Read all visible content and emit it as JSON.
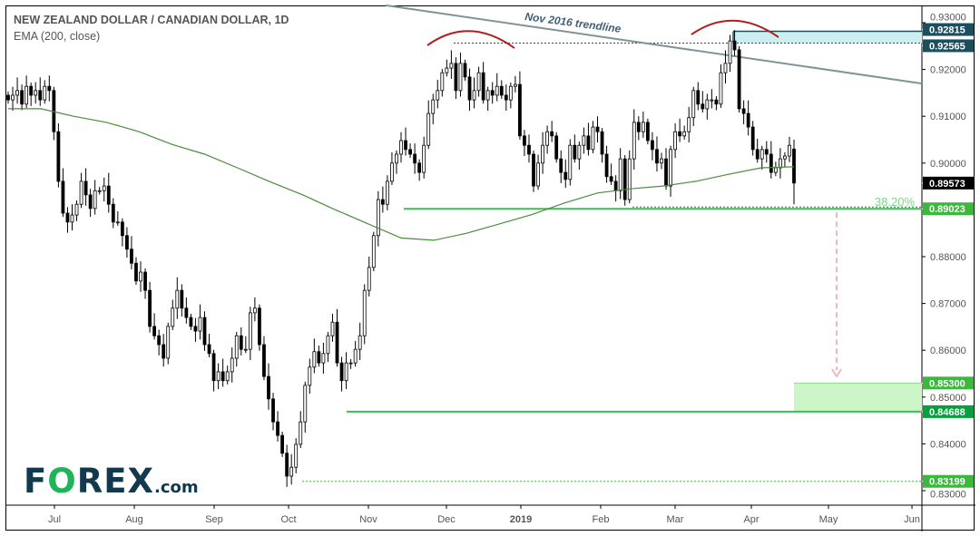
{
  "header": {
    "title": "NEW ZEALAND DOLLAR / CANADIAN DOLLAR, 1D",
    "indicator": "EMA (200, close)"
  },
  "logo": {
    "text": "FOREX.com",
    "brand_colors": {
      "dark": "#12394d",
      "green": "#1fb35a"
    }
  },
  "chart_data": {
    "type": "candlestick",
    "title": "NEW ZEALAND DOLLAR / CANADIAN DOLLAR, 1D",
    "ylim": [
      0.826,
      0.9335
    ],
    "y_ticks": [
      "0.93000",
      "0.92000",
      "0.91000",
      "0.90000",
      "0.88000",
      "0.87000",
      "0.86000",
      "0.85000",
      "0.84000",
      "0.83000"
    ],
    "y_tick_values": [
      0.93,
      0.92,
      0.91,
      0.9,
      0.88,
      0.87,
      0.86,
      0.85,
      0.84,
      0.83
    ],
    "x_ticks": [
      "Jul",
      "Aug",
      "Sep",
      "Oct",
      "Nov",
      "Dec",
      "2019",
      "Feb",
      "Mar",
      "Apr",
      "May",
      "Jun"
    ],
    "grid": false,
    "closes": [
      0.9135,
      0.9145,
      0.9155,
      0.9126,
      0.9164,
      0.9145,
      0.9155,
      0.9135,
      0.9164,
      0.9155,
      0.9067,
      0.8961,
      0.8893,
      0.8874,
      0.8889,
      0.8912,
      0.8961,
      0.8932,
      0.8903,
      0.8941,
      0.8941,
      0.8951,
      0.8912,
      0.8874,
      0.8874,
      0.8845,
      0.8816,
      0.8786,
      0.8748,
      0.8767,
      0.8728,
      0.8651,
      0.8631,
      0.8612,
      0.8583,
      0.8651,
      0.869,
      0.8728,
      0.869,
      0.867,
      0.8651,
      0.8641,
      0.867,
      0.8612,
      0.8593,
      0.8535,
      0.8554,
      0.8535,
      0.8554,
      0.8583,
      0.8631,
      0.8602,
      0.8602,
      0.868,
      0.869,
      0.8612,
      0.8544,
      0.8496,
      0.8447,
      0.8418,
      0.838,
      0.8331,
      0.835,
      0.8399,
      0.8447,
      0.8525,
      0.8564,
      0.8597,
      0.8573,
      0.8593,
      0.8631,
      0.866,
      0.8573,
      0.8535,
      0.8573,
      0.8573,
      0.8602,
      0.8631,
      0.8728,
      0.8777,
      0.8845,
      0.8922,
      0.8912,
      0.8961,
      0.9,
      0.9019,
      0.9048,
      0.9029,
      0.9019,
      0.9,
      0.898,
      0.9038,
      0.9106,
      0.9135,
      0.9155,
      0.9193,
      0.9203,
      0.9213,
      0.9155,
      0.9213,
      0.9184,
      0.9135,
      0.9155,
      0.9193,
      0.9135,
      0.9155,
      0.9145,
      0.9164,
      0.9145,
      0.9135,
      0.9164,
      0.9168,
      0.9058,
      0.9038,
      0.9019,
      0.8951,
      0.9,
      0.9038,
      0.9067,
      0.9058,
      0.9009,
      0.898,
      0.8965,
      0.9038,
      0.9009,
      0.9038,
      0.9058,
      0.9029,
      0.9077,
      0.9067,
      0.9019,
      0.8971,
      0.8961,
      0.8941,
      0.9009,
      0.8922,
      0.9009,
      0.9087,
      0.9067,
      0.9087,
      0.9048,
      0.9029,
      0.9,
      0.9009,
      0.8951,
      0.9029,
      0.9067,
      0.9058,
      0.9067,
      0.9097,
      0.9155,
      0.9126,
      0.9116,
      0.9135,
      0.9135,
      0.9126,
      0.9193,
      0.9213,
      0.9261,
      0.9242,
      0.9116,
      0.9106,
      0.9077,
      0.9029,
      0.9009,
      0.9029,
      0.9019,
      0.898,
      0.899,
      0.9009,
      0.9015,
      0.9038,
      0.8957
    ],
    "last_candle": {
      "open": 0.903,
      "high": 0.905,
      "low": 0.8912,
      "close": 0.89573
    },
    "ema_200": [
      0.9116,
      0.9116,
      0.91,
      0.9087,
      0.9067,
      0.904,
      0.9019,
      0.899,
      0.896,
      0.8932,
      0.89,
      0.887,
      0.884,
      0.8835,
      0.885,
      0.887,
      0.889,
      0.8915,
      0.8936,
      0.8945,
      0.8951,
      0.8961,
      0.8976,
      0.899,
      0.8992
    ],
    "annotations": {
      "trendline_label": "Nov 2016 trendline",
      "trendline_prices": [
        0.9337,
        0.917
      ],
      "resistance_zone": [
        0.92565,
        0.92815
      ],
      "fib_label": "38.20%",
      "fib_level": 0.89023,
      "target_zone": [
        0.84688,
        0.853
      ],
      "support_level": 0.84688,
      "low_level": 0.83199
    },
    "price_labels": [
      {
        "text": "0.92815",
        "value": 0.92815,
        "color": "#1c4f5e"
      },
      {
        "text": "0.92565",
        "value": 0.92565,
        "color": "#1c4f5e"
      },
      {
        "text": "0.89573",
        "value": 0.89573,
        "color": "#000000"
      },
      {
        "text": "0.89023",
        "value": 0.89023,
        "color": "#3cb93c"
      },
      {
        "text": "0.85300",
        "value": 0.853,
        "color": "#3cb93c"
      },
      {
        "text": "0.84688",
        "value": 0.84688,
        "color": "#07a03c"
      },
      {
        "text": "0.83199",
        "value": 0.83199,
        "color": "#3cb93c"
      }
    ],
    "colors": {
      "ema": "#4a8c3a",
      "trendline": "#7f9399",
      "green_line": "#3cbf5a",
      "arc": "#b01e1e",
      "zone_teal": "#cdeef0",
      "zone_green": "#ccf5c8",
      "arrow": "#f0b8b8"
    }
  }
}
